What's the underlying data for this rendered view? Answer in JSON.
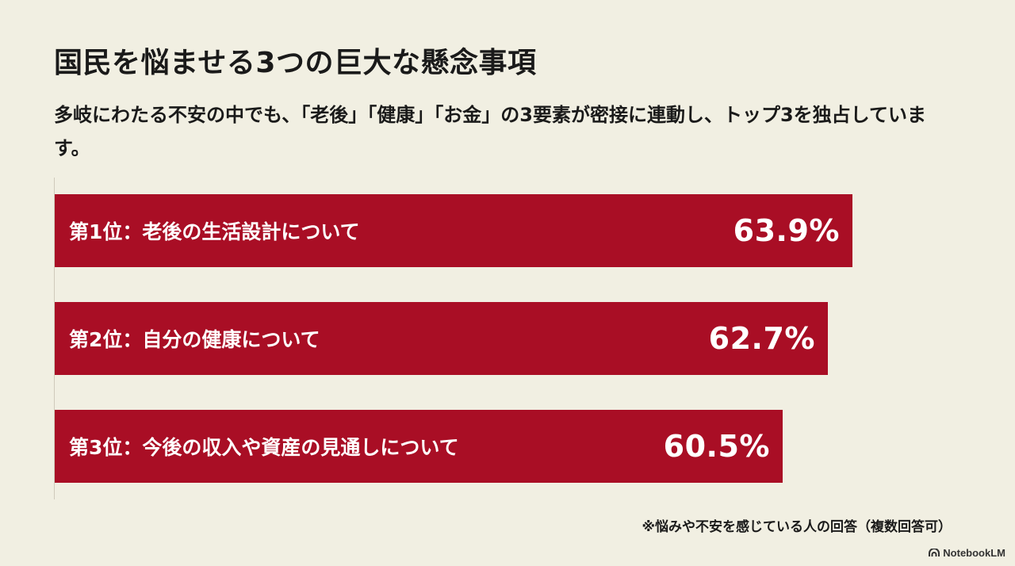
{
  "header": {
    "title": "国民を悩ませる3つの巨大な懸念事項",
    "subtitle": "多岐にわたる不安の中でも、「老後」「健康」「お金」の3要素が密接に連動し、トップ3を独占しています。"
  },
  "chart_data": {
    "type": "bar",
    "orientation": "horizontal",
    "categories": [
      "第1位：老後の生活設計について",
      "第2位：自分の健康について",
      "第3位：今後の収入や資産の見通しについて"
    ],
    "values": [
      63.9,
      62.7,
      60.5
    ],
    "value_labels": [
      "63.9%",
      "62.7%",
      "60.5%"
    ],
    "unit": "%",
    "bar_color": "#a90e25",
    "grid": false
  },
  "footnote": "※悩みや不安を感じている人の回答（複数回答可）",
  "brand": {
    "name": "NotebookLM",
    "icon": "notebooklm-logo-icon"
  },
  "colors": {
    "background": "#f1efe2",
    "bar": "#a90e25",
    "text": "#1a1a1a"
  }
}
